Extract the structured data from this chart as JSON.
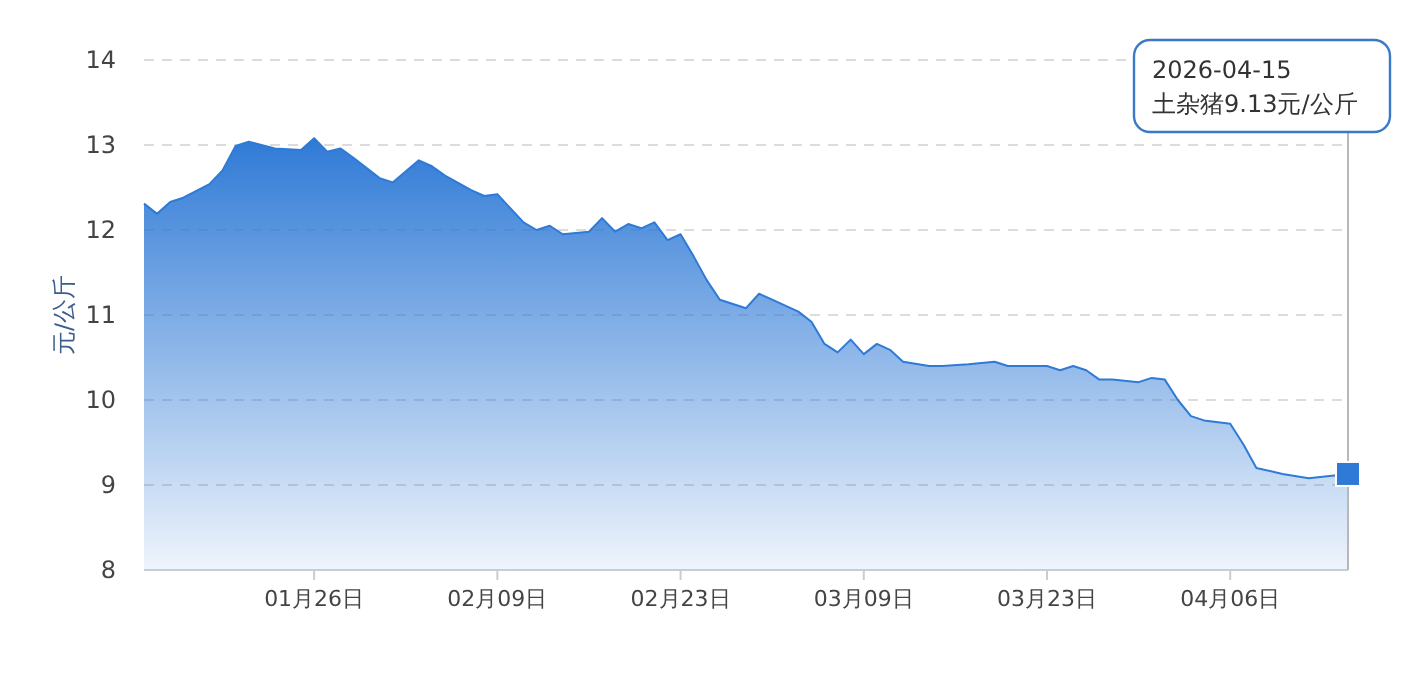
{
  "chart_data": {
    "type": "area",
    "ylabel": "元/公斤",
    "xlim": [
      "2026-01-13",
      "2026-04-15"
    ],
    "xticks": [
      {
        "value": "2026-01-26",
        "label": "01月26日"
      },
      {
        "value": "2026-02-09",
        "label": "02月09日"
      },
      {
        "value": "2026-02-23",
        "label": "02月23日"
      },
      {
        "value": "2026-03-09",
        "label": "03月09日"
      },
      {
        "value": "2026-03-23",
        "label": "03月23日"
      },
      {
        "value": "2026-04-06",
        "label": "04月06日"
      }
    ],
    "ylim": [
      8,
      14
    ],
    "yticks": [
      8,
      9,
      10,
      11,
      12,
      13,
      14
    ],
    "grid": "y",
    "x": [
      "2026-01-13",
      "2026-01-14",
      "2026-01-15",
      "2026-01-16",
      "2026-01-18",
      "2026-01-19",
      "2026-01-20",
      "2026-01-21",
      "2026-01-23",
      "2026-01-25",
      "2026-01-26",
      "2026-01-27",
      "2026-01-28",
      "2026-01-29",
      "2026-01-31",
      "2026-02-01",
      "2026-02-03",
      "2026-02-04",
      "2026-02-05",
      "2026-02-07",
      "2026-02-08",
      "2026-02-09",
      "2026-02-11",
      "2026-02-12",
      "2026-02-13",
      "2026-02-14",
      "2026-02-16",
      "2026-02-17",
      "2026-02-18",
      "2026-02-19",
      "2026-02-20",
      "2026-02-21",
      "2026-02-22",
      "2026-02-23",
      "2026-02-24",
      "2026-02-25",
      "2026-02-26",
      "2026-02-28",
      "2026-03-01",
      "2026-03-02",
      "2026-03-04",
      "2026-03-05",
      "2026-03-06",
      "2026-03-07",
      "2026-03-08",
      "2026-03-09",
      "2026-03-10",
      "2026-03-11",
      "2026-03-12",
      "2026-03-14",
      "2026-03-15",
      "2026-03-17",
      "2026-03-19",
      "2026-03-20",
      "2026-03-21",
      "2026-03-23",
      "2026-03-24",
      "2026-03-25",
      "2026-03-26",
      "2026-03-27",
      "2026-03-28",
      "2026-03-30",
      "2026-03-31",
      "2026-04-01",
      "2026-04-02",
      "2026-04-03",
      "2026-04-04",
      "2026-04-06",
      "2026-04-07",
      "2026-04-08",
      "2026-04-10",
      "2026-04-12",
      "2026-04-15"
    ],
    "series": [
      {
        "color": "#2f7ad6",
        "values": [
          12.31,
          12.19,
          12.33,
          12.38,
          12.54,
          12.7,
          12.99,
          13.04,
          12.96,
          12.94,
          13.08,
          12.92,
          12.96,
          12.85,
          12.61,
          12.56,
          12.82,
          12.75,
          12.64,
          12.47,
          12.4,
          12.42,
          12.09,
          12.0,
          12.05,
          11.95,
          11.98,
          12.14,
          11.98,
          12.07,
          12.02,
          12.09,
          11.88,
          11.95,
          11.69,
          11.41,
          11.18,
          11.08,
          11.25,
          11.18,
          11.04,
          10.92,
          10.66,
          10.56,
          10.71,
          10.54,
          10.66,
          10.59,
          10.45,
          10.4,
          10.4,
          10.42,
          10.45,
          10.4,
          10.4,
          10.4,
          10.35,
          10.4,
          10.35,
          10.24,
          10.24,
          10.21,
          10.26,
          10.24,
          10.0,
          9.81,
          9.76,
          9.72,
          9.48,
          9.2,
          9.13,
          9.08,
          9.13
        ]
      }
    ],
    "ref_lines": [
      {
        "axis": "x",
        "value": "2026-04-15",
        "label": null,
        "color": "#b8b8b8"
      }
    ],
    "annotations": [
      "2026-04-15\n土杂猪9.13元/公斤"
    ]
  }
}
